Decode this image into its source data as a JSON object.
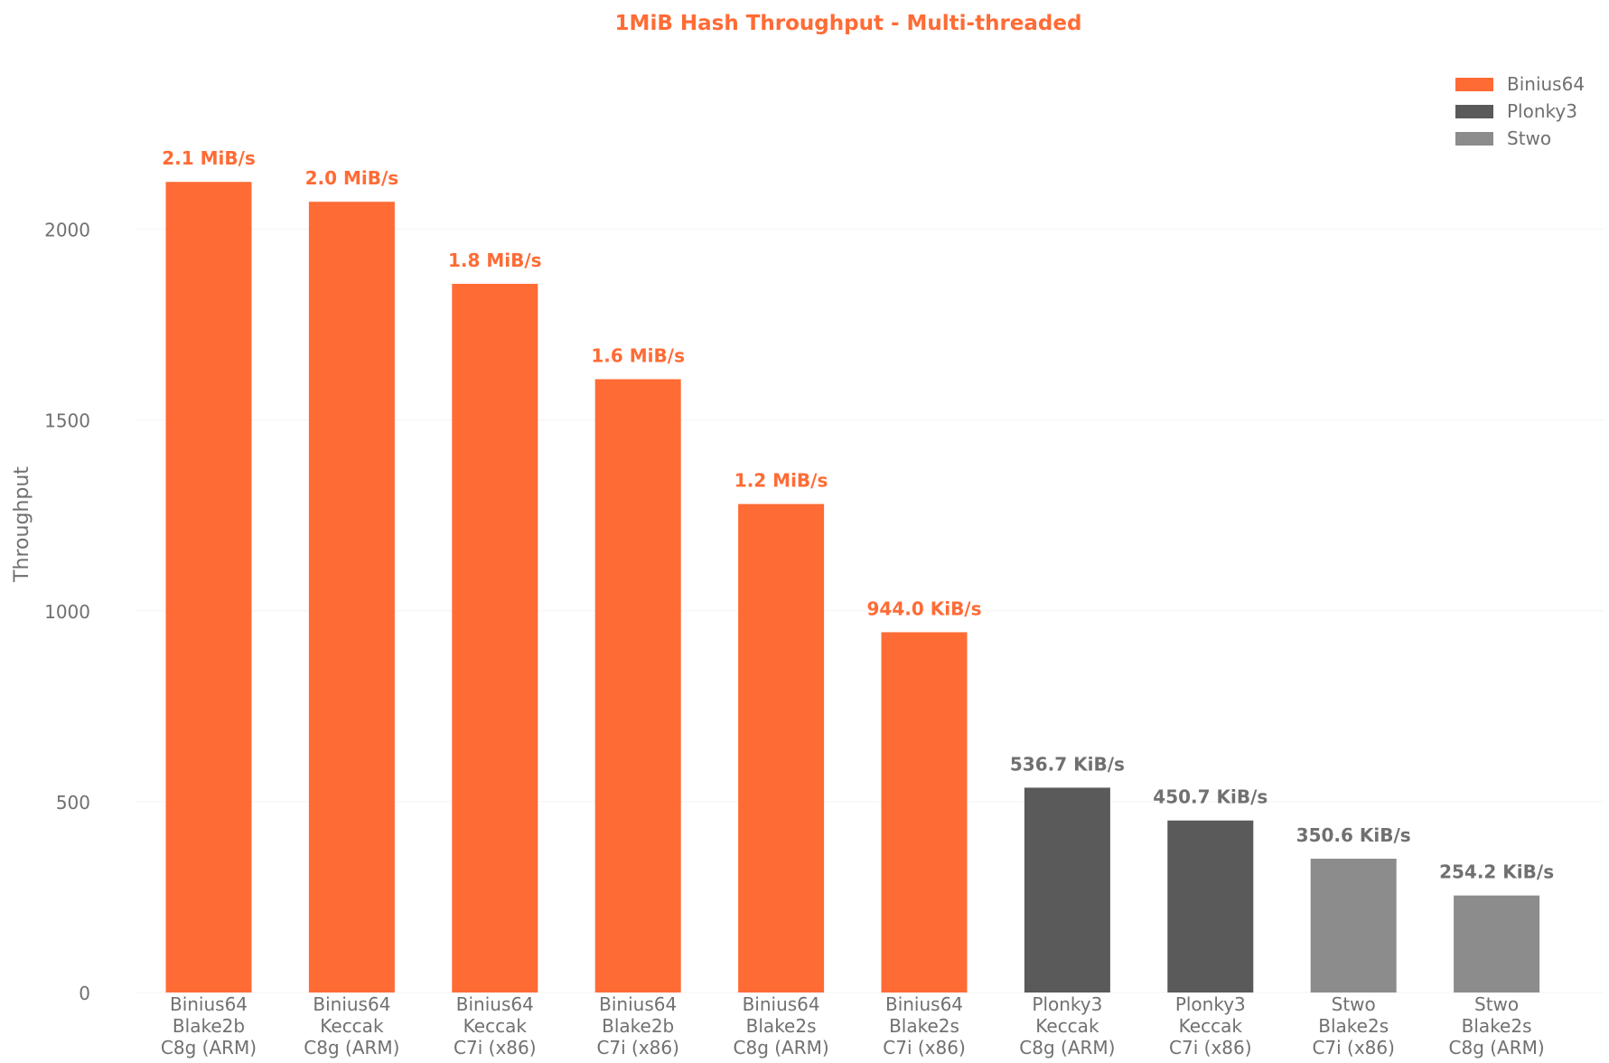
{
  "chart_data": {
    "type": "bar",
    "title": "1MiB Hash Throughput - Multi-threaded",
    "xlabel": "",
    "ylabel": "Throughput",
    "ylim": [
      0,
      2400
    ],
    "yticks": [
      0,
      500,
      1000,
      1500,
      2000
    ],
    "grid": true,
    "legend_position": "top-right",
    "legend": [
      {
        "name": "Binius64",
        "color": "#ff6b35"
      },
      {
        "name": "Plonky3",
        "color": "#5a5a5a"
      },
      {
        "name": "Stwo",
        "color": "#8c8c8c"
      }
    ],
    "bars": [
      {
        "category": [
          "Binius64",
          "Blake2b",
          "C8g (ARM)"
        ],
        "value": 2124,
        "label": "2.1 MiB/s",
        "group": "Binius64"
      },
      {
        "category": [
          "Binius64",
          "Keccak",
          "C8g (ARM)"
        ],
        "value": 2072,
        "label": "2.0 MiB/s",
        "group": "Binius64"
      },
      {
        "category": [
          "Binius64",
          "Keccak",
          "C7i (x86)"
        ],
        "value": 1857,
        "label": "1.8 MiB/s",
        "group": "Binius64"
      },
      {
        "category": [
          "Binius64",
          "Blake2b",
          "C7i (x86)"
        ],
        "value": 1607,
        "label": "1.6 MiB/s",
        "group": "Binius64"
      },
      {
        "category": [
          "Binius64",
          "Blake2s",
          "C8g (ARM)"
        ],
        "value": 1280,
        "label": "1.2 MiB/s",
        "group": "Binius64"
      },
      {
        "category": [
          "Binius64",
          "Blake2s",
          "C7i (x86)"
        ],
        "value": 944.0,
        "label": "944.0 KiB/s",
        "group": "Binius64"
      },
      {
        "category": [
          "Plonky3",
          "Keccak",
          "C8g (ARM)"
        ],
        "value": 536.7,
        "label": "536.7 KiB/s",
        "group": "Plonky3"
      },
      {
        "category": [
          "Plonky3",
          "Keccak",
          "C7i (x86)"
        ],
        "value": 450.7,
        "label": "450.7 KiB/s",
        "group": "Plonky3"
      },
      {
        "category": [
          "Stwo",
          "Blake2s",
          "C7i (x86)"
        ],
        "value": 350.6,
        "label": "350.6 KiB/s",
        "group": "Stwo"
      },
      {
        "category": [
          "Stwo",
          "Blake2s",
          "C8g (ARM)"
        ],
        "value": 254.2,
        "label": "254.2 KiB/s",
        "group": "Stwo"
      }
    ]
  }
}
